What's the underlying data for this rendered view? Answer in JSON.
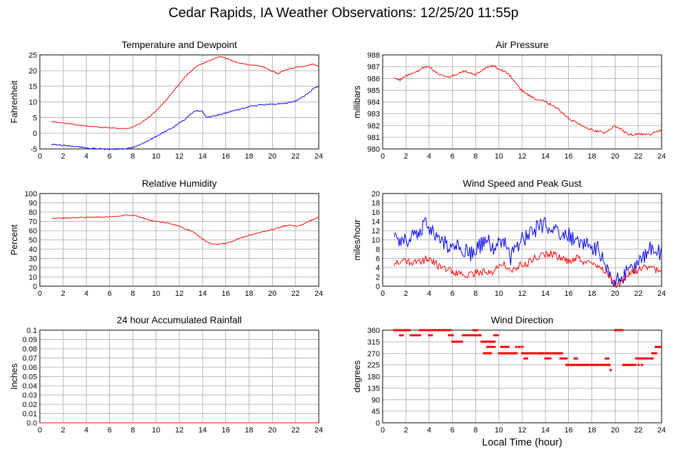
{
  "page": {
    "title": "Cedar Rapids, IA Weather Observations: 12/25/20 11:55p",
    "xlabel": "Local Time (hour)"
  },
  "colors": {
    "red": "#ff0000",
    "blue": "#0000ff",
    "grid": "#b8b8b8"
  },
  "chart_data": [
    {
      "id": "temp",
      "type": "line",
      "title": "Temperature and Dewpoint",
      "ylabel": "Fahrenheit",
      "xlim": [
        0,
        24
      ],
      "ylim": [
        -5,
        25
      ],
      "xticks": [
        2,
        4,
        6,
        8,
        10,
        12,
        14,
        16,
        18,
        20,
        22,
        24
      ],
      "yticks": [
        -5,
        0,
        5,
        10,
        15,
        20,
        25
      ],
      "grid": true,
      "series": [
        {
          "color": "#ff0000",
          "noise": 0.15,
          "x": [
            1,
            2,
            3,
            4,
            5,
            6,
            7,
            7.7,
            8.5,
            9.5,
            10.5,
            11.5,
            12.5,
            13.5,
            14.5,
            15.5,
            16,
            17,
            18,
            19,
            20,
            20.5,
            21,
            22,
            23,
            23.5,
            24
          ],
          "y": [
            3.7,
            3.3,
            2.8,
            2.3,
            2.0,
            1.8,
            1.5,
            1.6,
            2.8,
            5.5,
            9.0,
            13.5,
            18.0,
            21.5,
            23.0,
            24.5,
            24.0,
            22.5,
            21.8,
            21.5,
            19.8,
            19.0,
            20.0,
            21.0,
            21.5,
            22.2,
            21.3
          ]
        },
        {
          "color": "#0000ff",
          "noise": 0.2,
          "x": [
            1,
            2,
            3,
            4,
            5,
            6,
            7,
            7.8,
            8.5,
            9.5,
            10.5,
            11.5,
            12.5,
            13.3,
            14,
            14.3,
            15,
            16,
            17,
            18,
            19,
            20,
            21,
            22,
            23,
            23.6,
            24
          ],
          "y": [
            -3.5,
            -3.8,
            -4.2,
            -4.7,
            -5.0,
            -5.1,
            -5.0,
            -4.7,
            -3.8,
            -2.0,
            0.0,
            2.0,
            4.5,
            7.0,
            7.2,
            5.0,
            5.5,
            6.5,
            7.5,
            8.5,
            9.0,
            9.3,
            9.5,
            10.2,
            12.5,
            14.5,
            15.0
          ]
        }
      ]
    },
    {
      "id": "pressure",
      "type": "line",
      "title": "Air Pressure",
      "ylabel": "millibars",
      "xlim": [
        0,
        24
      ],
      "ylim": [
        980,
        988
      ],
      "xticks": [
        2,
        4,
        6,
        8,
        10,
        12,
        14,
        16,
        18,
        20,
        22,
        24
      ],
      "yticks": [
        980,
        981,
        982,
        983,
        984,
        985,
        986,
        987,
        988
      ],
      "grid": true,
      "series": [
        {
          "color": "#ff0000",
          "noise": 0.1,
          "x": [
            1,
            1.5,
            2,
            2.5,
            3,
            3.5,
            4,
            4.5,
            5,
            5.5,
            6,
            7,
            7.5,
            8,
            8.5,
            9,
            9.5,
            10,
            10.5,
            11,
            11.5,
            12,
            12.5,
            13,
            14,
            15,
            16,
            17,
            18,
            19,
            19.5,
            20,
            20.5,
            21,
            21.5,
            22,
            23,
            23.5,
            24
          ],
          "y": [
            986.0,
            985.9,
            986.2,
            986.4,
            986.6,
            986.9,
            987.0,
            986.6,
            986.3,
            986.1,
            986.2,
            986.6,
            986.5,
            986.3,
            986.6,
            987.0,
            987.1,
            986.8,
            986.6,
            986.2,
            985.6,
            984.9,
            984.6,
            984.3,
            984.0,
            983.5,
            982.6,
            982.0,
            981.6,
            981.4,
            981.6,
            982.0,
            981.7,
            981.3,
            981.2,
            981.3,
            981.2,
            981.5,
            981.6
          ]
        }
      ]
    },
    {
      "id": "rh",
      "type": "line",
      "title": "Relative Humidity",
      "ylabel": "Percent",
      "xlim": [
        0,
        24
      ],
      "ylim": [
        0,
        100
      ],
      "xticks": [
        2,
        4,
        6,
        8,
        10,
        12,
        14,
        16,
        18,
        20,
        22,
        24
      ],
      "yticks": [
        0,
        10,
        20,
        30,
        40,
        50,
        60,
        70,
        80,
        90,
        100
      ],
      "grid": true,
      "series": [
        {
          "color": "#ff0000",
          "noise": 0.6,
          "x": [
            1,
            2,
            3,
            4,
            5,
            6,
            7,
            7.5,
            8,
            8.5,
            9,
            9.5,
            10,
            11,
            12,
            12.5,
            13,
            13.5,
            14,
            14.5,
            15,
            16,
            16.5,
            17,
            17.5,
            18,
            19,
            20,
            21,
            21.5,
            22,
            22.5,
            23,
            23.5,
            24
          ],
          "y": [
            73.5,
            73.5,
            74,
            74.5,
            74.5,
            75,
            76,
            77,
            76.5,
            75,
            73,
            71,
            70,
            68,
            65,
            62,
            60,
            56,
            51,
            47,
            45,
            46,
            48,
            51,
            53,
            55,
            58,
            61,
            65,
            66,
            65,
            66,
            69,
            72,
            75
          ]
        }
      ]
    },
    {
      "id": "wind",
      "type": "line",
      "title": "Wind Speed and Peak Gust",
      "ylabel": "miles/hour",
      "xlim": [
        0,
        24
      ],
      "ylim": [
        0,
        20
      ],
      "xticks": [
        2,
        4,
        6,
        8,
        10,
        12,
        14,
        16,
        18,
        20,
        22,
        24
      ],
      "yticks": [
        0,
        2,
        4,
        6,
        8,
        10,
        12,
        14,
        16,
        18,
        20
      ],
      "grid": true,
      "series": [
        {
          "color": "#0000ff",
          "noise": 1.8,
          "x": [
            1,
            1.5,
            2,
            2.5,
            3,
            3.5,
            3.7,
            4,
            4.5,
            5,
            5.5,
            6,
            6.5,
            7,
            7.5,
            8,
            8.5,
            9,
            9.5,
            10,
            10.5,
            11,
            11.5,
            12,
            12.5,
            13,
            13.5,
            14,
            14.5,
            15,
            15.5,
            16,
            16.5,
            17,
            17.5,
            18,
            18.5,
            19,
            19.5,
            19.8,
            20,
            20.3,
            20.6,
            21,
            21.5,
            22,
            22.5,
            23,
            23.5,
            24
          ],
          "y": [
            11,
            9,
            10,
            11,
            12,
            13,
            15,
            12,
            11,
            10,
            9,
            8,
            9,
            8,
            7,
            8,
            9,
            10,
            8,
            9,
            10,
            6,
            8,
            10,
            11,
            12,
            13,
            13,
            12,
            12,
            11,
            11,
            10,
            10,
            9,
            8,
            8,
            6,
            3,
            1,
            0.5,
            2,
            1,
            3,
            4,
            5,
            6,
            8,
            8,
            7
          ]
        },
        {
          "color": "#ff0000",
          "noise": 0.8,
          "x": [
            1,
            1.5,
            2,
            2.5,
            3,
            3.5,
            4,
            4.5,
            5,
            5.5,
            6,
            6.5,
            7,
            7.5,
            8,
            8.5,
            9,
            9.5,
            10,
            10.5,
            11,
            11.5,
            12,
            12.5,
            13,
            13.5,
            14,
            14.5,
            15,
            15.5,
            16,
            16.5,
            17,
            17.5,
            18,
            18.5,
            19,
            19.5,
            20,
            20.3,
            20.6,
            21,
            21.5,
            22,
            22.5,
            23,
            23.5,
            24
          ],
          "y": [
            5,
            5,
            5.5,
            5,
            5,
            5.5,
            6,
            5,
            4,
            4,
            3,
            3,
            2.5,
            2.5,
            3,
            3,
            3,
            3,
            4,
            5,
            3,
            4,
            5,
            5,
            6,
            6.5,
            7,
            7,
            6.5,
            6,
            5.5,
            6,
            6,
            5,
            5,
            4,
            3.5,
            2,
            0.3,
            0.5,
            1,
            2.5,
            3,
            3.5,
            4,
            4.5,
            3.5,
            2.5
          ]
        }
      ]
    },
    {
      "id": "rain",
      "type": "line",
      "title": "24 hour Accumulated Rainfall",
      "ylabel": "Inches",
      "xlim": [
        0,
        24
      ],
      "ylim": [
        0,
        0.1
      ],
      "xticks": [
        2,
        4,
        6,
        8,
        10,
        12,
        14,
        16,
        18,
        20,
        22,
        24
      ],
      "yticks": [
        0,
        0.01,
        0.02,
        0.03,
        0.04,
        0.05,
        0.06,
        0.07,
        0.08,
        0.09,
        0.1
      ],
      "yticklabels": [
        "0.0",
        "0.01",
        "0.02",
        "0.03",
        "0.04",
        "0.05",
        "0.06",
        "0.07",
        "0.08",
        "0.09",
        "0.1"
      ],
      "grid": true,
      "series": [
        {
          "color": "#ff0000",
          "x": [
            0,
            24
          ],
          "y": [
            0,
            0
          ]
        }
      ]
    },
    {
      "id": "dir",
      "type": "scatter",
      "title": "Wind Direction",
      "ylabel": "degrees",
      "xlim": [
        0,
        24
      ],
      "ylim": [
        0,
        360
      ],
      "xticks": [
        2,
        4,
        6,
        8,
        10,
        12,
        14,
        16,
        18,
        20,
        22,
        24
      ],
      "yticks": [
        0,
        45,
        90,
        135,
        180,
        225,
        270,
        315,
        360
      ],
      "grid": true,
      "series": [
        {
          "color": "#ff0000",
          "segments": [
            [
              1.0,
              1.5,
              360,
              5
            ],
            [
              1.5,
              1.7,
              340,
              2
            ],
            [
              1.7,
              2.3,
              360,
              5
            ],
            [
              2.4,
              3.2,
              340,
              6
            ],
            [
              3.2,
              4.0,
              360,
              6
            ],
            [
              4.0,
              4.2,
              340,
              2
            ],
            [
              4.2,
              5.8,
              360,
              12
            ],
            [
              5.7,
              6.0,
              340,
              3
            ],
            [
              6.0,
              6.8,
              315,
              7
            ],
            [
              6.9,
              7.3,
              340,
              3
            ],
            [
              7.3,
              8.4,
              340,
              9
            ],
            [
              7.8,
              8.1,
              360,
              3
            ],
            [
              8.5,
              9.6,
              315,
              8
            ],
            [
              8.7,
              9.3,
              270,
              5
            ],
            [
              9.0,
              9.6,
              295,
              5
            ],
            [
              9.6,
              9.9,
              340,
              3
            ],
            [
              10.0,
              11.5,
              270,
              10
            ],
            [
              10.2,
              10.8,
              295,
              4
            ],
            [
              11.5,
              12.0,
              295,
              3
            ],
            [
              12.0,
              13.6,
              270,
              10
            ],
            [
              12.2,
              12.4,
              250,
              2
            ],
            [
              13.6,
              14.8,
              270,
              9
            ],
            [
              14.0,
              14.4,
              250,
              3
            ],
            [
              14.9,
              15.4,
              270,
              4
            ],
            [
              15.3,
              15.8,
              250,
              4
            ],
            [
              15.8,
              19.5,
              225,
              28
            ],
            [
              16.5,
              16.7,
              250,
              2
            ],
            [
              19.2,
              19.4,
              250,
              2
            ],
            [
              19.6,
              19.8,
              205,
              1
            ],
            [
              20.0,
              20.6,
              360,
              6
            ],
            [
              20.7,
              21.7,
              225,
              8
            ],
            [
              21.8,
              23.2,
              250,
              10
            ],
            [
              22.0,
              22.3,
              225,
              2
            ],
            [
              23.2,
              23.5,
              270,
              3
            ],
            [
              23.5,
              24.0,
              295,
              4
            ]
          ]
        }
      ]
    }
  ]
}
